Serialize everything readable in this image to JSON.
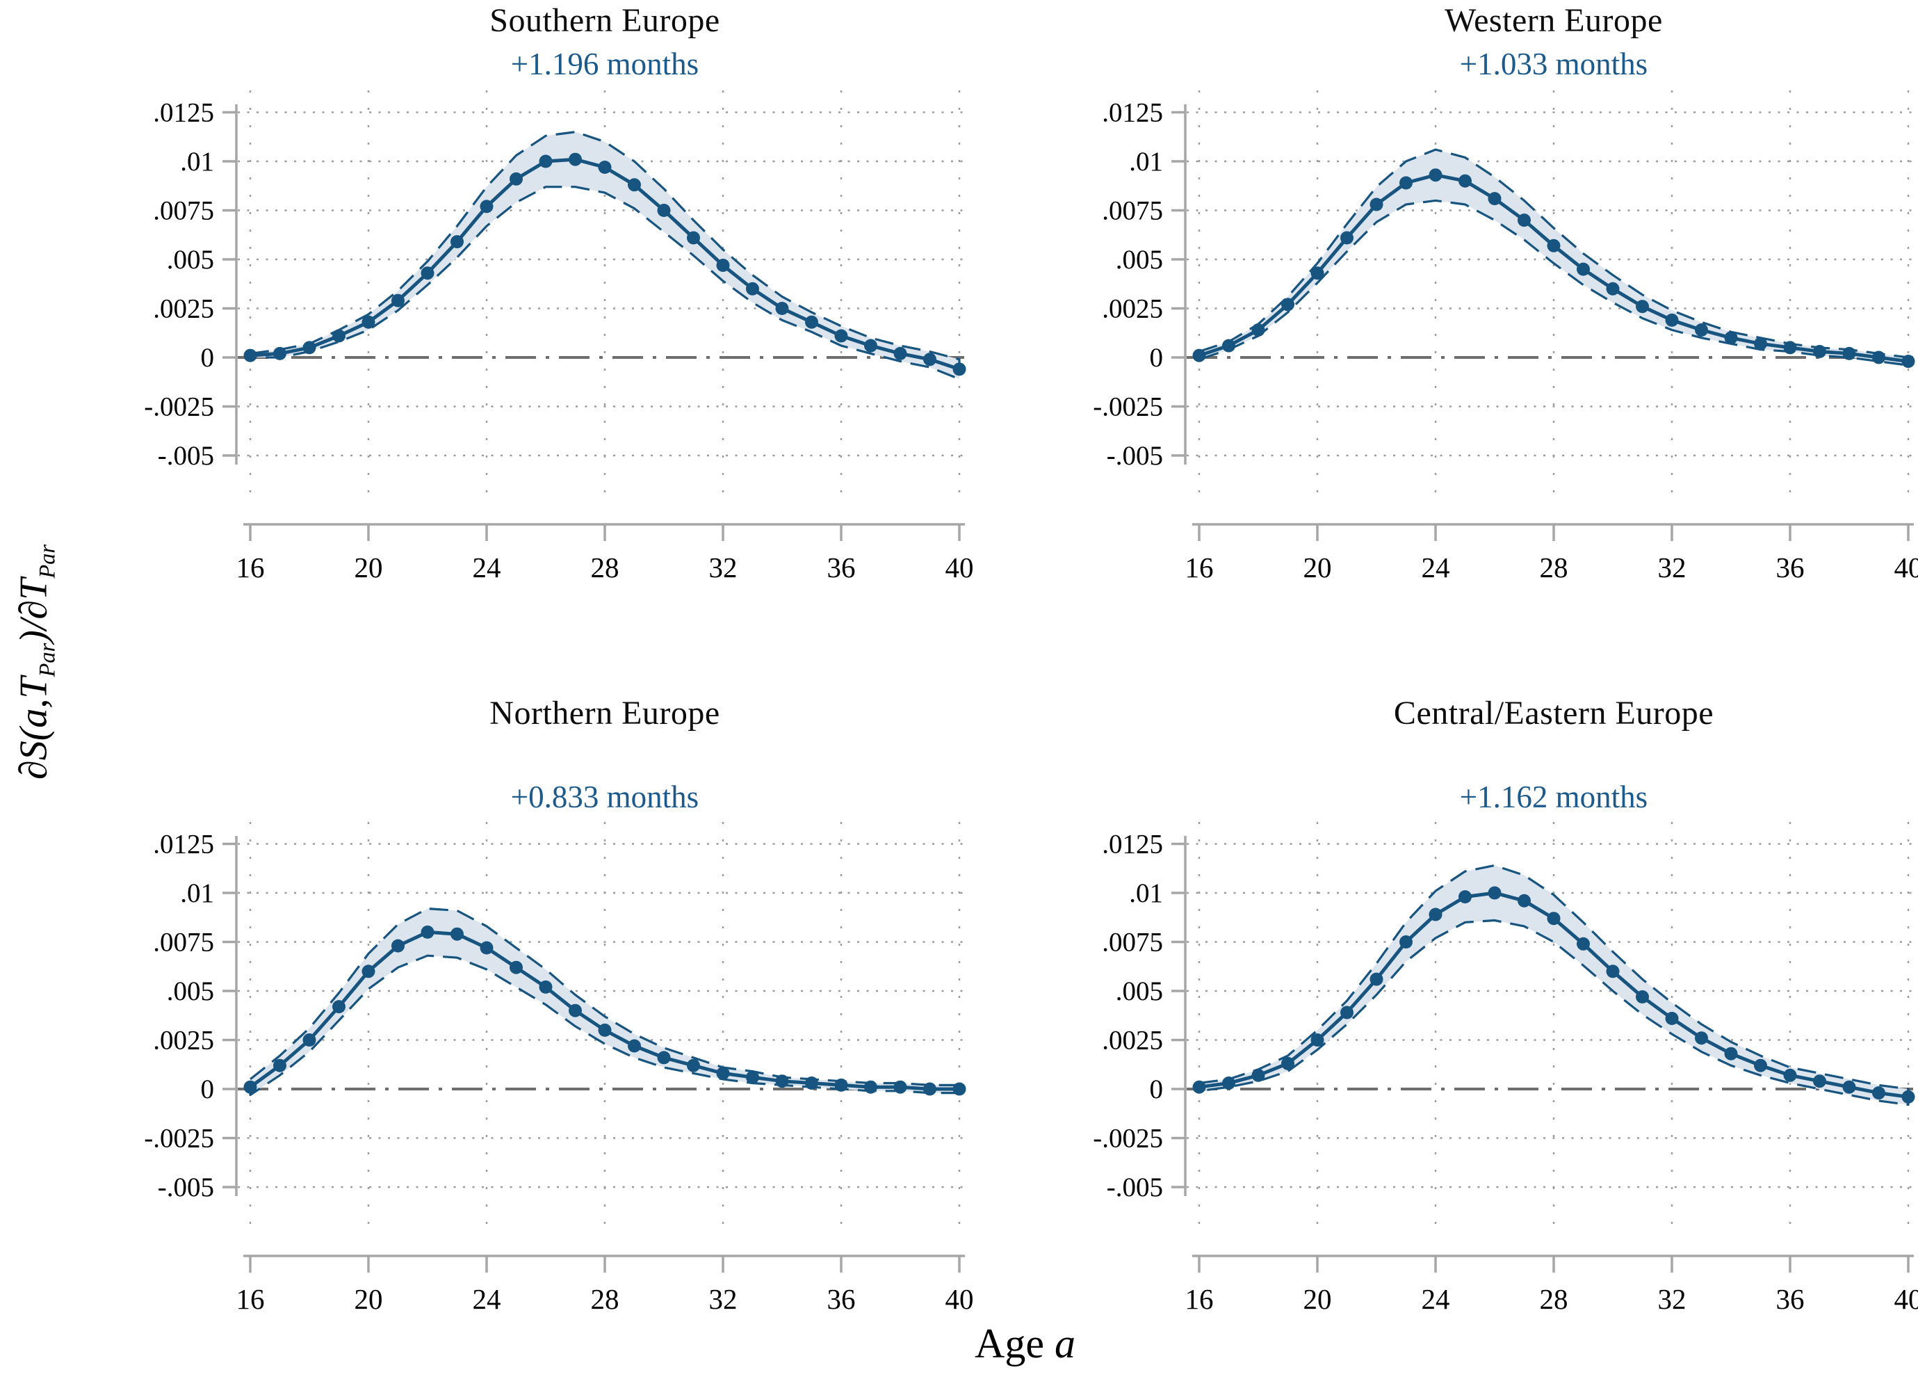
{
  "colors": {
    "line": "#175580",
    "band": "#dce4ee",
    "annotation": "#1c5a8c",
    "zero": "#6e6e6e",
    "grid": "#9b9b9b",
    "axis": "#a6a6a6",
    "text": "#000000"
  },
  "chart_data": {
    "type": "line",
    "layout": "2x2-panels",
    "xlabel_parts": {
      "text": "Age ",
      "var": "a"
    },
    "ylabel_parts": {
      "pre": "∂S(a,T",
      "sub1": "Par",
      "mid": ")/∂T",
      "sub2": "Par"
    },
    "x_ticks": [
      16,
      20,
      24,
      28,
      32,
      36,
      40
    ],
    "y_ticks": [
      0.0125,
      0.01,
      0.0075,
      0.005,
      0.0025,
      0,
      -0.0025,
      -0.005
    ],
    "y_tick_labels": [
      ".0125",
      ".01",
      ".0075",
      ".005",
      ".0025",
      "0",
      "-.0025",
      "-.005"
    ],
    "xlim": [
      16,
      40
    ],
    "ylim": [
      -0.005,
      0.0125
    ],
    "grid": "dotted",
    "zero_line": "dashed-gray",
    "band": "confidence-band-with-dashed-edges",
    "legend": false,
    "panels": [
      {
        "title": "Southern Europe",
        "annotation": "+1.196 months",
        "x": [
          16,
          17,
          18,
          19,
          20,
          21,
          22,
          23,
          24,
          25,
          26,
          27,
          28,
          29,
          30,
          31,
          32,
          33,
          34,
          35,
          36,
          37,
          38,
          39,
          40
        ],
        "estimate": [
          0.0001,
          0.0002,
          0.0005,
          0.0011,
          0.0018,
          0.0029,
          0.0043,
          0.0059,
          0.0077,
          0.0091,
          0.01,
          0.0101,
          0.0097,
          0.0088,
          0.0075,
          0.0061,
          0.0047,
          0.0035,
          0.0025,
          0.0018,
          0.0011,
          0.0006,
          0.0002,
          -0.0001,
          -0.0006
        ],
        "ci_upper": [
          0.0002,
          0.0004,
          0.0007,
          0.0014,
          0.0022,
          0.0034,
          0.0049,
          0.0067,
          0.0087,
          0.0103,
          0.0113,
          0.0115,
          0.011,
          0.01,
          0.0086,
          0.007,
          0.0055,
          0.0042,
          0.0031,
          0.0023,
          0.0016,
          0.001,
          0.0006,
          0.0003,
          -0.0001
        ],
        "ci_lower": [
          0.0,
          0.0,
          0.0003,
          0.0008,
          0.0014,
          0.0024,
          0.0037,
          0.0051,
          0.0067,
          0.0079,
          0.0087,
          0.0087,
          0.0084,
          0.0076,
          0.0064,
          0.0052,
          0.0039,
          0.0028,
          0.0019,
          0.0013,
          0.0006,
          0.0002,
          -0.0002,
          -0.0005,
          -0.0011
        ]
      },
      {
        "title": "Western Europe",
        "annotation": "+1.033 months",
        "x": [
          16,
          17,
          18,
          19,
          20,
          21,
          22,
          23,
          24,
          25,
          26,
          27,
          28,
          29,
          30,
          31,
          32,
          33,
          34,
          35,
          36,
          37,
          38,
          39,
          40
        ],
        "estimate": [
          0.0001,
          0.0006,
          0.0014,
          0.0027,
          0.0043,
          0.0061,
          0.0078,
          0.0089,
          0.0093,
          0.009,
          0.0081,
          0.007,
          0.0057,
          0.0045,
          0.0035,
          0.0026,
          0.0019,
          0.0014,
          0.001,
          0.0007,
          0.0005,
          0.0003,
          0.0002,
          0.0,
          -0.0002
        ],
        "ci_upper": [
          0.0003,
          0.0008,
          0.0017,
          0.0031,
          0.0048,
          0.0068,
          0.0087,
          0.01,
          0.0106,
          0.0102,
          0.0092,
          0.008,
          0.0066,
          0.0053,
          0.0042,
          0.0032,
          0.0024,
          0.0018,
          0.0013,
          0.001,
          0.0007,
          0.0005,
          0.0004,
          0.0002,
          0.0
        ],
        "ci_lower": [
          -0.0001,
          0.0004,
          0.0011,
          0.0023,
          0.0038,
          0.0054,
          0.0069,
          0.0078,
          0.008,
          0.0078,
          0.007,
          0.006,
          0.0048,
          0.0037,
          0.0028,
          0.002,
          0.0014,
          0.001,
          0.0007,
          0.0004,
          0.0003,
          0.0001,
          0.0,
          -0.0002,
          -0.0004
        ]
      },
      {
        "title": "Northern Europe",
        "annotation": "+0.833 months",
        "x": [
          16,
          17,
          18,
          19,
          20,
          21,
          22,
          23,
          24,
          25,
          26,
          27,
          28,
          29,
          30,
          31,
          32,
          33,
          34,
          35,
          36,
          37,
          38,
          39,
          40
        ],
        "estimate": [
          0.0001,
          0.0012,
          0.0025,
          0.0042,
          0.006,
          0.0073,
          0.008,
          0.0079,
          0.0072,
          0.0062,
          0.0052,
          0.004,
          0.003,
          0.0022,
          0.0016,
          0.0012,
          0.0008,
          0.0006,
          0.0004,
          0.0003,
          0.0002,
          0.0001,
          0.0001,
          0.0,
          0.0
        ],
        "ci_upper": [
          0.0005,
          0.0017,
          0.0031,
          0.0049,
          0.0069,
          0.0084,
          0.0092,
          0.0091,
          0.0083,
          0.0072,
          0.0061,
          0.0048,
          0.0037,
          0.0028,
          0.0021,
          0.0016,
          0.0011,
          0.0009,
          0.0006,
          0.0005,
          0.0004,
          0.0003,
          0.0003,
          0.0002,
          0.0002
        ],
        "ci_lower": [
          -0.0003,
          0.0007,
          0.0019,
          0.0035,
          0.0051,
          0.0062,
          0.0068,
          0.0067,
          0.0061,
          0.0052,
          0.0043,
          0.0032,
          0.0023,
          0.0016,
          0.0011,
          0.0008,
          0.0005,
          0.0003,
          0.0002,
          0.0001,
          0.0,
          -0.0001,
          -0.0001,
          -0.0002,
          -0.0002
        ]
      },
      {
        "title": "Central/Eastern Europe",
        "annotation": "+1.162 months",
        "x": [
          16,
          17,
          18,
          19,
          20,
          21,
          22,
          23,
          24,
          25,
          26,
          27,
          28,
          29,
          30,
          31,
          32,
          33,
          34,
          35,
          36,
          37,
          38,
          39,
          40
        ],
        "estimate": [
          0.0001,
          0.0003,
          0.0007,
          0.0013,
          0.0025,
          0.0039,
          0.0056,
          0.0075,
          0.0089,
          0.0098,
          0.01,
          0.0096,
          0.0087,
          0.0074,
          0.006,
          0.0047,
          0.0036,
          0.0026,
          0.0018,
          0.0012,
          0.0007,
          0.0004,
          0.0001,
          -0.0002,
          -0.0004
        ],
        "ci_upper": [
          0.0003,
          0.0005,
          0.001,
          0.0017,
          0.003,
          0.0045,
          0.0064,
          0.0085,
          0.0101,
          0.0111,
          0.0114,
          0.0109,
          0.0099,
          0.0085,
          0.007,
          0.0056,
          0.0044,
          0.0033,
          0.0024,
          0.0017,
          0.0011,
          0.0008,
          0.0005,
          0.0002,
          0.0
        ],
        "ci_lower": [
          -0.0001,
          0.0001,
          0.0004,
          0.0009,
          0.002,
          0.0033,
          0.0048,
          0.0065,
          0.0077,
          0.0085,
          0.0086,
          0.0083,
          0.0075,
          0.0063,
          0.005,
          0.0038,
          0.0028,
          0.0019,
          0.0012,
          0.0007,
          0.0003,
          0.0,
          -0.0003,
          -0.0006,
          -0.0008
        ]
      }
    ]
  }
}
